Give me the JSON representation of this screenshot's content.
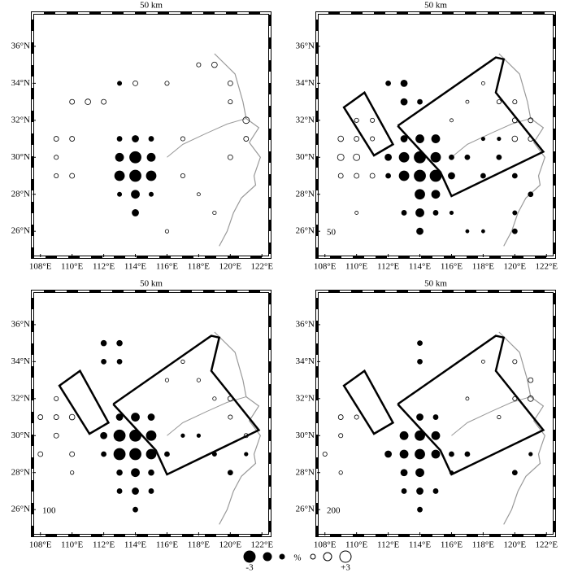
{
  "chart_data": [
    {
      "type": "checkerboard-map",
      "title": "50 km",
      "label": null,
      "xlim": [
        107.5,
        122.5
      ],
      "ylim": [
        24.6,
        37.8
      ],
      "xticks": [
        {
          "value": 108,
          "label": "108°E"
        },
        {
          "value": 110,
          "label": "110°E"
        },
        {
          "value": 112,
          "label": "112°E"
        },
        {
          "value": 114,
          "label": "114°E"
        },
        {
          "value": 116,
          "label": "116°E"
        },
        {
          "value": 118,
          "label": "118°E"
        },
        {
          "value": 120,
          "label": "120°E"
        },
        {
          "value": 122,
          "label": "122°E"
        }
      ],
      "yticks": [
        {
          "value": 26,
          "label": "26°N"
        },
        {
          "value": 28,
          "label": "28°N"
        },
        {
          "value": 30,
          "label": "30°N"
        },
        {
          "value": 32,
          "label": "32°N"
        },
        {
          "value": 34,
          "label": "34°N"
        },
        {
          "value": 36,
          "label": "36°N"
        }
      ],
      "points": [
        [
          113,
          31,
          -1
        ],
        [
          114,
          31,
          -1.5
        ],
        [
          115,
          31,
          -1
        ],
        [
          113,
          30,
          -2
        ],
        [
          114,
          30,
          -3
        ],
        [
          115,
          30,
          -2
        ],
        [
          113,
          29,
          -2.5
        ],
        [
          114,
          29,
          -3
        ],
        [
          115,
          29,
          -2.5
        ],
        [
          114,
          28,
          -2
        ],
        [
          114,
          27,
          -1.5
        ],
        [
          113,
          28,
          -0.8
        ],
        [
          115,
          28,
          -0.8
        ],
        [
          109,
          31,
          1
        ],
        [
          110,
          31,
          1
        ],
        [
          109,
          30,
          0.8
        ],
        [
          110,
          29,
          1
        ],
        [
          109,
          29,
          0.8
        ],
        [
          110,
          33,
          1
        ],
        [
          111,
          33,
          1.2
        ],
        [
          112,
          33,
          1
        ],
        [
          113,
          34,
          -0.8
        ],
        [
          114,
          34,
          1
        ],
        [
          116,
          34,
          0.8
        ],
        [
          118,
          35,
          0.8
        ],
        [
          119,
          35,
          1.2
        ],
        [
          120,
          34,
          1
        ],
        [
          121,
          32,
          1.5
        ],
        [
          121,
          31,
          1
        ],
        [
          120,
          33,
          0.8
        ],
        [
          117,
          31,
          0.8
        ],
        [
          117,
          29,
          0.8
        ],
        [
          118,
          28,
          0.5
        ],
        [
          120,
          30,
          1
        ],
        [
          116,
          26,
          0.6
        ],
        [
          119,
          27,
          0.6
        ]
      ]
    },
    {
      "type": "checkerboard-map",
      "title": "50 km",
      "label": "50",
      "xlim": [
        107.5,
        122.5
      ],
      "ylim": [
        24.6,
        37.8
      ],
      "xticks": [
        {
          "value": 108,
          "label": "108°E"
        },
        {
          "value": 110,
          "label": "110°E"
        },
        {
          "value": 112,
          "label": "112°E"
        },
        {
          "value": 114,
          "label": "114°E"
        },
        {
          "value": 116,
          "label": "116°E"
        },
        {
          "value": 118,
          "label": "118°E"
        },
        {
          "value": 120,
          "label": "120°E"
        },
        {
          "value": 122,
          "label": "122°E"
        }
      ],
      "yticks": [
        {
          "value": 26,
          "label": "26°N"
        },
        {
          "value": 28,
          "label": "28°N"
        },
        {
          "value": 30,
          "label": "30°N"
        },
        {
          "value": 32,
          "label": "32°N"
        },
        {
          "value": 34,
          "label": "34°N"
        },
        {
          "value": 36,
          "label": "36°N"
        }
      ],
      "points": [
        [
          113,
          30,
          -2.5
        ],
        [
          114,
          30,
          -3
        ],
        [
          115,
          30,
          -2.5
        ],
        [
          113,
          29,
          -2.5
        ],
        [
          114,
          29,
          -3
        ],
        [
          115,
          29,
          -3
        ],
        [
          114,
          31,
          -2
        ],
        [
          113,
          31,
          -1.5
        ],
        [
          115,
          31,
          -2
        ],
        [
          112,
          30,
          -1.5
        ],
        [
          112,
          29,
          -1
        ],
        [
          116,
          29,
          -1.5
        ],
        [
          114,
          28,
          -2.5
        ],
        [
          115,
          28,
          -2
        ],
        [
          114,
          27,
          -2
        ],
        [
          114,
          26,
          -1.5
        ],
        [
          113,
          27,
          -1
        ],
        [
          115,
          27,
          -1
        ],
        [
          113,
          33,
          -1.5
        ],
        [
          113,
          34,
          -1.5
        ],
        [
          112,
          34,
          -1
        ],
        [
          114,
          33,
          -1
        ],
        [
          116,
          30,
          -1
        ],
        [
          117,
          30,
          -1
        ],
        [
          118,
          29,
          -1
        ],
        [
          119,
          30,
          -1
        ],
        [
          118,
          31,
          -0.6
        ],
        [
          119,
          31,
          -0.6
        ],
        [
          120,
          29,
          -1
        ],
        [
          121,
          28,
          -1
        ],
        [
          120,
          27,
          -0.8
        ],
        [
          116,
          27,
          -0.6
        ],
        [
          117,
          26,
          -0.5
        ],
        [
          118,
          26,
          -0.5
        ],
        [
          120,
          26,
          -1
        ],
        [
          109,
          30,
          1.5
        ],
        [
          110,
          30,
          1.5
        ],
        [
          109,
          31,
          1.2
        ],
        [
          110,
          31,
          1
        ],
        [
          109,
          29,
          1
        ],
        [
          110,
          29,
          1
        ],
        [
          111,
          29,
          1
        ],
        [
          110,
          32,
          0.8
        ],
        [
          111,
          32,
          0.8
        ],
        [
          111,
          31,
          0.8
        ],
        [
          119,
          33,
          0.8
        ],
        [
          120,
          33,
          0.8
        ],
        [
          120,
          32,
          1
        ],
        [
          121,
          32,
          1
        ],
        [
          120,
          31,
          1.2
        ],
        [
          121,
          31,
          1
        ],
        [
          117,
          33,
          0.5
        ],
        [
          118,
          34,
          0.5
        ],
        [
          116,
          32,
          0.5
        ],
        [
          110,
          27,
          0.5
        ]
      ]
    },
    {
      "type": "checkerboard-map",
      "title": "50 km",
      "label": "100",
      "xlim": [
        107.5,
        122.5
      ],
      "ylim": [
        24.6,
        37.8
      ],
      "xticks": [
        {
          "value": 108,
          "label": "108°E"
        },
        {
          "value": 110,
          "label": "110°E"
        },
        {
          "value": 112,
          "label": "112°E"
        },
        {
          "value": 114,
          "label": "114°E"
        },
        {
          "value": 116,
          "label": "116°E"
        },
        {
          "value": 118,
          "label": "118°E"
        },
        {
          "value": 120,
          "label": "120°E"
        },
        {
          "value": 122,
          "label": "122°E"
        }
      ],
      "yticks": [
        {
          "value": 26,
          "label": "26°N"
        },
        {
          "value": 28,
          "label": "28°N"
        },
        {
          "value": 30,
          "label": "30°N"
        },
        {
          "value": 32,
          "label": "32°N"
        },
        {
          "value": 34,
          "label": "34°N"
        },
        {
          "value": 36,
          "label": "36°N"
        }
      ],
      "points": [
        [
          113,
          30,
          -3
        ],
        [
          114,
          30,
          -3
        ],
        [
          115,
          30,
          -2.5
        ],
        [
          113,
          29,
          -3
        ],
        [
          114,
          29,
          -3
        ],
        [
          115,
          29,
          -2.5
        ],
        [
          114,
          31,
          -2
        ],
        [
          113,
          31,
          -1.5
        ],
        [
          115,
          31,
          -1.5
        ],
        [
          112,
          30,
          -1.5
        ],
        [
          112,
          29,
          -1
        ],
        [
          116,
          29,
          -1
        ],
        [
          114,
          28,
          -2
        ],
        [
          113,
          28,
          -1.2
        ],
        [
          115,
          28,
          -1.2
        ],
        [
          114,
          27,
          -1.5
        ],
        [
          113,
          27,
          -1
        ],
        [
          115,
          27,
          -1
        ],
        [
          114,
          26,
          -1
        ],
        [
          112,
          35,
          -1.2
        ],
        [
          113,
          35,
          -1.2
        ],
        [
          112,
          34,
          -1
        ],
        [
          113,
          34,
          -1
        ],
        [
          117,
          30,
          -0.6
        ],
        [
          118,
          30,
          -0.6
        ],
        [
          119,
          29,
          -0.8
        ],
        [
          120,
          28,
          -1
        ],
        [
          121,
          29,
          -0.6
        ],
        [
          109,
          31,
          1
        ],
        [
          110,
          31,
          1.2
        ],
        [
          109,
          30,
          1
        ],
        [
          110,
          29,
          1
        ],
        [
          109,
          32,
          0.8
        ],
        [
          108,
          31,
          1
        ],
        [
          108,
          29,
          1
        ],
        [
          110,
          28,
          0.6
        ],
        [
          116,
          33,
          0.6
        ],
        [
          117,
          34,
          0.6
        ],
        [
          118,
          33,
          0.6
        ],
        [
          120,
          32,
          1
        ],
        [
          120,
          31,
          0.8
        ],
        [
          121,
          30,
          0.8
        ],
        [
          119,
          32,
          0.6
        ]
      ]
    },
    {
      "type": "checkerboard-map",
      "title": "50 km",
      "label": "200",
      "xlim": [
        107.5,
        122.5
      ],
      "ylim": [
        24.6,
        37.8
      ],
      "xticks": [
        {
          "value": 108,
          "label": "108°E"
        },
        {
          "value": 110,
          "label": "110°E"
        },
        {
          "value": 112,
          "label": "112°E"
        },
        {
          "value": 114,
          "label": "114°E"
        },
        {
          "value": 116,
          "label": "116°E"
        },
        {
          "value": 118,
          "label": "118°E"
        },
        {
          "value": 120,
          "label": "120°E"
        },
        {
          "value": 122,
          "label": "122°E"
        }
      ],
      "yticks": [
        {
          "value": 26,
          "label": "26°N"
        },
        {
          "value": 28,
          "label": "28°N"
        },
        {
          "value": 30,
          "label": "30°N"
        },
        {
          "value": 32,
          "label": "32°N"
        },
        {
          "value": 34,
          "label": "34°N"
        },
        {
          "value": 36,
          "label": "36°N"
        }
      ],
      "points": [
        [
          113,
          30,
          -2
        ],
        [
          114,
          30,
          -2.5
        ],
        [
          115,
          30,
          -2
        ],
        [
          113,
          29,
          -2
        ],
        [
          114,
          29,
          -2.5
        ],
        [
          115,
          29,
          -2
        ],
        [
          114,
          31,
          -1.5
        ],
        [
          115,
          31,
          -1
        ],
        [
          112,
          29,
          -1.5
        ],
        [
          114,
          28,
          -2
        ],
        [
          113,
          28,
          -1.5
        ],
        [
          114,
          27,
          -1.5
        ],
        [
          113,
          27,
          -1
        ],
        [
          115,
          27,
          -1
        ],
        [
          114,
          26,
          -1
        ],
        [
          114,
          35,
          -1
        ],
        [
          114,
          34,
          -1
        ],
        [
          116,
          29,
          -1
        ],
        [
          117,
          29,
          -1
        ],
        [
          116,
          28,
          -0.6
        ],
        [
          120,
          28,
          -1
        ],
        [
          121,
          29,
          -0.6
        ],
        [
          109,
          31,
          1
        ],
        [
          110,
          31,
          0.8
        ],
        [
          109,
          30,
          0.8
        ],
        [
          108,
          29,
          0.8
        ],
        [
          109,
          28,
          0.6
        ],
        [
          120,
          34,
          0.8
        ],
        [
          121,
          33,
          1
        ],
        [
          121,
          32,
          1.2
        ],
        [
          120,
          32,
          0.8
        ],
        [
          119,
          31,
          0.6
        ],
        [
          117,
          32,
          0.5
        ],
        [
          118,
          34,
          0.5
        ]
      ]
    }
  ],
  "legend": {
    "sizes": [
      -3,
      -2,
      -1,
      1,
      2,
      3
    ],
    "min_label": "-3",
    "max_label": "+3",
    "unit": "%"
  }
}
